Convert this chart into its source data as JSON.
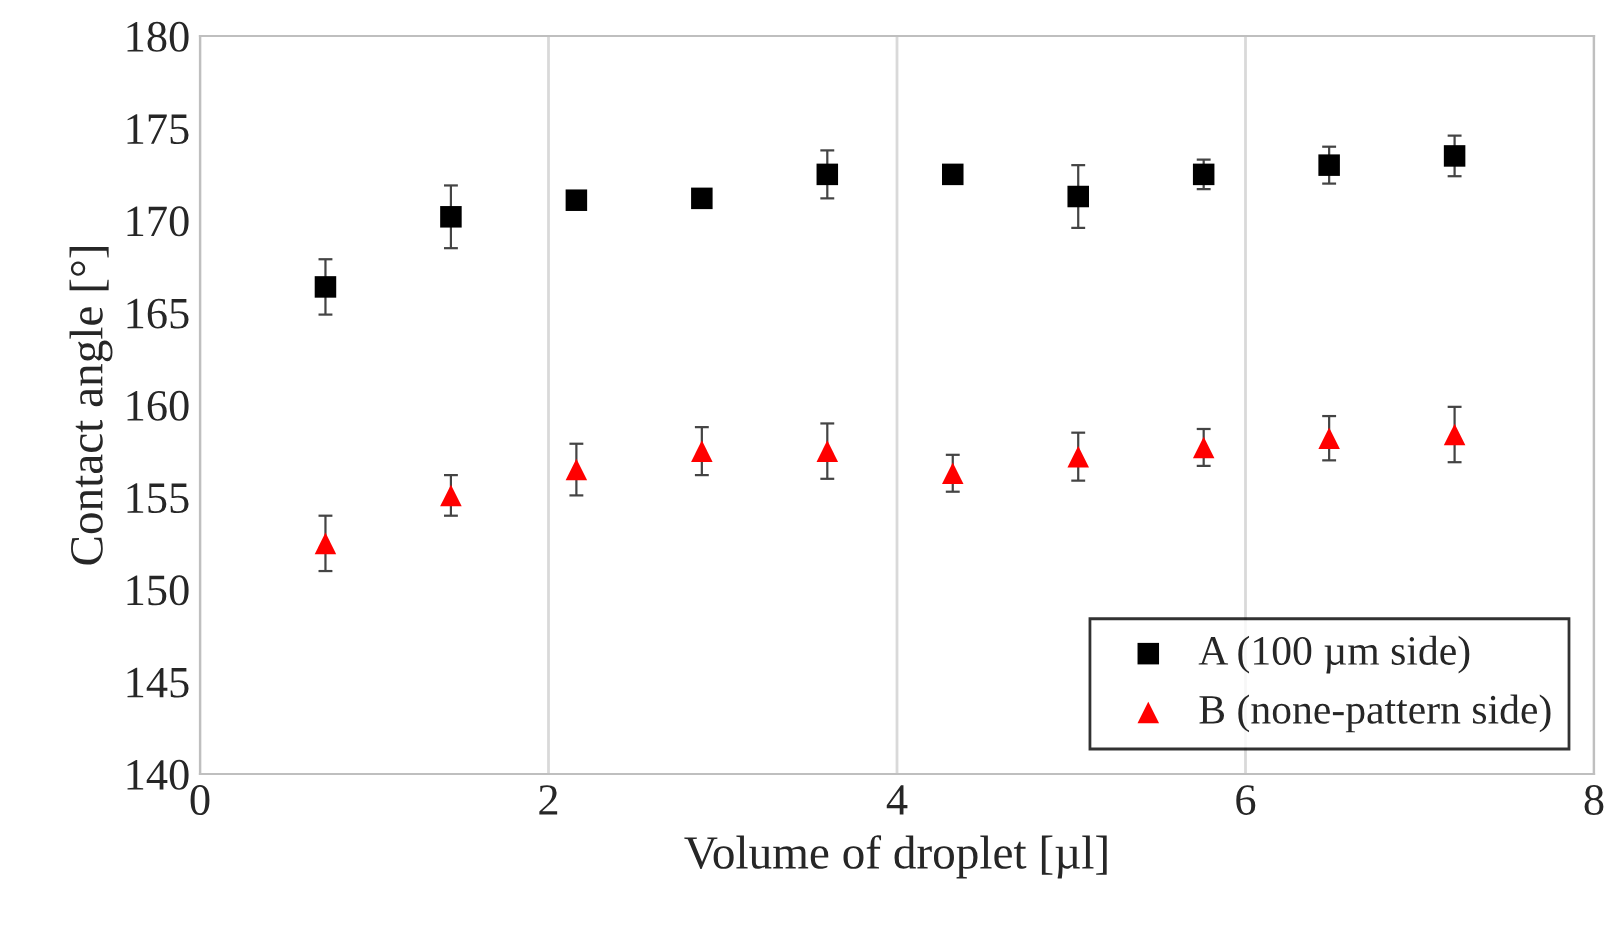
{
  "chart_data": {
    "type": "scatter",
    "xlabel": "Volume of droplet [µl]",
    "ylabel": "Contact angle [°]",
    "x": [
      0.72,
      1.44,
      2.16,
      2.88,
      3.6,
      4.32,
      5.04,
      5.76,
      6.48,
      7.2
    ],
    "series": [
      {
        "name": "A (100 µm side)",
        "color": "#000000",
        "marker": "square",
        "values": [
          166.4,
          170.2,
          171.1,
          171.2,
          172.5,
          172.5,
          171.3,
          172.5,
          173.0,
          173.5
        ],
        "errors": [
          1.5,
          1.7,
          0.3,
          0.2,
          1.3,
          0.3,
          1.7,
          0.8,
          1.0,
          1.1
        ]
      },
      {
        "name": "B (none-pattern side)",
        "color": "#ff0000",
        "marker": "triangle",
        "values": [
          152.5,
          155.1,
          156.5,
          157.5,
          157.5,
          156.3,
          157.2,
          157.7,
          158.2,
          158.4
        ],
        "errors": [
          1.5,
          1.1,
          1.4,
          1.3,
          1.5,
          1.0,
          1.3,
          1.0,
          1.2,
          1.5
        ]
      }
    ],
    "xlim": [
      0,
      8
    ],
    "xticks": [
      0,
      2,
      4,
      6,
      8
    ],
    "ylim": [
      140,
      180
    ],
    "yticks": [
      140,
      145,
      150,
      155,
      160,
      165,
      170,
      175,
      180
    ],
    "grid": "x",
    "legend": "bottom right"
  }
}
